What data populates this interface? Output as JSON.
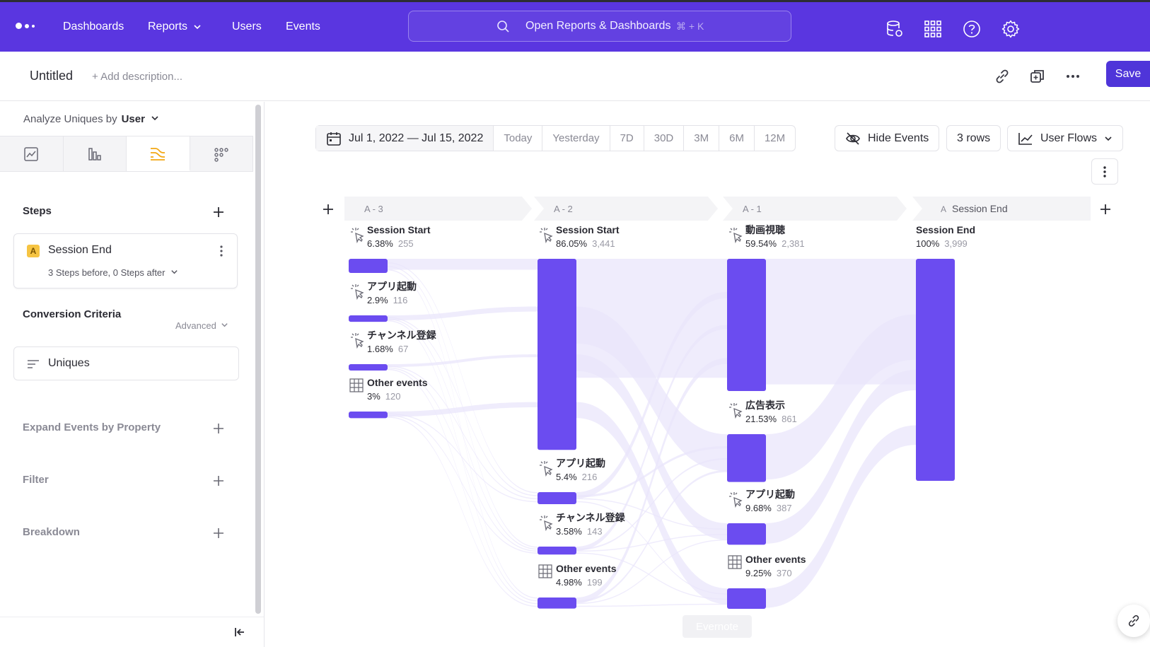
{
  "nav": {
    "items": [
      "Dashboards",
      "Reports",
      "Users",
      "Events"
    ],
    "search_placeholder": "Open Reports & Dashboards",
    "search_shortcut": "⌘ + K"
  },
  "toolbar": {
    "title": "Untitled",
    "description_placeholder": "+ Add description...",
    "save_label": "Save"
  },
  "sidebar": {
    "analyze_label": "Analyze Uniques by",
    "analyze_value": "User",
    "steps_heading": "Steps",
    "step": {
      "badge": "A",
      "name": "Session End",
      "subtitle": "3 Steps before, 0 Steps after"
    },
    "conversion_heading": "Conversion Criteria",
    "advanced_label": "Advanced",
    "criteria_value": "Uniques",
    "expand_heading": "Expand Events by Property",
    "filter_heading": "Filter",
    "breakdown_heading": "Breakdown"
  },
  "controls": {
    "date_range": "Jul 1, 2022 — Jul 15, 2022",
    "ranges": [
      "Today",
      "Yesterday",
      "7D",
      "30D",
      "3M",
      "6M",
      "12M"
    ],
    "hide_events": "Hide Events",
    "rows": "3 rows",
    "view": "User Flows"
  },
  "flow": {
    "columns": [
      {
        "label": "A - 3",
        "nodes": [
          {
            "name": "Session Start",
            "pct": "6.38%",
            "count": "255",
            "icon": "cursor-click"
          },
          {
            "name": "アプリ起動",
            "pct": "2.9%",
            "count": "116",
            "icon": "cursor-click"
          },
          {
            "name": "チャンネル登録",
            "pct": "1.68%",
            "count": "67",
            "icon": "cursor-click"
          },
          {
            "name": "Other events",
            "pct": "3%",
            "count": "120",
            "icon": "grid"
          }
        ]
      },
      {
        "label": "A - 2",
        "nodes": [
          {
            "name": "Session Start",
            "pct": "86.05%",
            "count": "3,441",
            "icon": "cursor-click"
          },
          {
            "name": "アプリ起動",
            "pct": "5.4%",
            "count": "216",
            "icon": "cursor-click"
          },
          {
            "name": "チャンネル登録",
            "pct": "3.58%",
            "count": "143",
            "icon": "cursor-click"
          },
          {
            "name": "Other events",
            "pct": "4.98%",
            "count": "199",
            "icon": "grid"
          }
        ]
      },
      {
        "label": "A - 1",
        "nodes": [
          {
            "name": "動画視聴",
            "pct": "59.54%",
            "count": "2,381",
            "icon": "cursor-click"
          },
          {
            "name": "広告表示",
            "pct": "21.53%",
            "count": "861",
            "icon": "cursor-click"
          },
          {
            "name": "アプリ起動",
            "pct": "9.68%",
            "count": "387",
            "icon": "cursor-click"
          },
          {
            "name": "Other events",
            "pct": "9.25%",
            "count": "370",
            "icon": "grid"
          }
        ]
      },
      {
        "label": "Session End",
        "badge": "A",
        "nodes": [
          {
            "name": "Session End",
            "pct": "100%",
            "count": "3,999",
            "icon": "none"
          }
        ]
      }
    ]
  },
  "tooltip": "Evernote",
  "colors": {
    "brand": "#5a36e0",
    "bar": "#6b4cf0",
    "link": "#e9e6fb",
    "accent_tab": "#f3a712"
  }
}
